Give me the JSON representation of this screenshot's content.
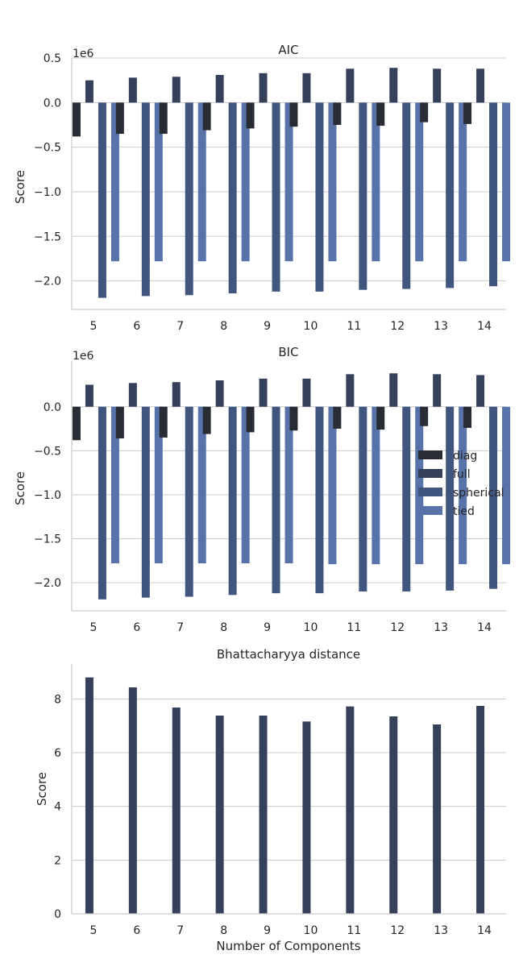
{
  "colors": {
    "diag": "#282c35",
    "full": "#35415a",
    "spherical": "#41567f",
    "tied": "#5873a9",
    "bhatt": "#35415a",
    "grid": "#cccccc",
    "axis": "#cccccc",
    "text": "#262626",
    "background": "#ffffff"
  },
  "legend": {
    "entries": [
      "diag",
      "full",
      "spherical",
      "tied"
    ],
    "placement": "center-right of BIC panel"
  },
  "xlabel": "Number of Components",
  "chart_data": [
    {
      "type": "bar",
      "title": "AIC",
      "xlabel": "",
      "ylabel": "Score",
      "offset_text": "1e6",
      "categories": [
        "5",
        "6",
        "7",
        "8",
        "9",
        "10",
        "11",
        "12",
        "13",
        "14"
      ],
      "ylim": [
        -2.32,
        0.5
      ],
      "yticks": [
        0.5,
        0.0,
        -0.5,
        -1.0,
        -1.5,
        -2.0
      ],
      "ytick_labels": [
        "0.5",
        "0.0",
        "−0.5",
        "−1.0",
        "−1.5",
        "−2.0"
      ],
      "grid": true,
      "series": [
        {
          "name": "diag",
          "values": [
            -0.38,
            -0.35,
            -0.35,
            -0.31,
            -0.29,
            -0.27,
            -0.25,
            -0.26,
            -0.22,
            -0.24
          ]
        },
        {
          "name": "full",
          "values": [
            0.25,
            0.28,
            0.29,
            0.31,
            0.33,
            0.33,
            0.38,
            0.39,
            0.38,
            0.38
          ]
        },
        {
          "name": "spherical",
          "values": [
            -2.19,
            -2.17,
            -2.16,
            -2.14,
            -2.12,
            -2.12,
            -2.1,
            -2.09,
            -2.08,
            -2.06
          ]
        },
        {
          "name": "tied",
          "values": [
            -1.78,
            -1.78,
            -1.78,
            -1.78,
            -1.78,
            -1.78,
            -1.78,
            -1.78,
            -1.78,
            -1.78
          ]
        }
      ]
    },
    {
      "type": "bar",
      "title": "BIC",
      "xlabel": "",
      "ylabel": "Score",
      "offset_text": "1e6",
      "categories": [
        "5",
        "6",
        "7",
        "8",
        "9",
        "10",
        "11",
        "12",
        "13",
        "14"
      ],
      "ylim": [
        -2.32,
        0.52
      ],
      "yticks": [
        0.0,
        -0.5,
        -1.0,
        -1.5,
        -2.0
      ],
      "ytick_labels": [
        "0.0",
        "−0.5",
        "−1.0",
        "−1.5",
        "−2.0"
      ],
      "grid": true,
      "legend": true,
      "series": [
        {
          "name": "diag",
          "values": [
            -0.38,
            -0.36,
            -0.35,
            -0.31,
            -0.29,
            -0.27,
            -0.25,
            -0.26,
            -0.22,
            -0.24
          ]
        },
        {
          "name": "full",
          "values": [
            0.25,
            0.27,
            0.28,
            0.3,
            0.32,
            0.32,
            0.37,
            0.38,
            0.37,
            0.36
          ]
        },
        {
          "name": "spherical",
          "values": [
            -2.19,
            -2.17,
            -2.16,
            -2.14,
            -2.12,
            -2.12,
            -2.1,
            -2.1,
            -2.09,
            -2.07
          ]
        },
        {
          "name": "tied",
          "values": [
            -1.78,
            -1.78,
            -1.78,
            -1.78,
            -1.78,
            -1.79,
            -1.79,
            -1.79,
            -1.79,
            -1.79
          ]
        }
      ]
    },
    {
      "type": "bar",
      "title": "Bhattacharyya distance",
      "xlabel": "Number of Components",
      "ylabel": "Score",
      "offset_text": "",
      "categories": [
        "5",
        "6",
        "7",
        "8",
        "9",
        "10",
        "11",
        "12",
        "13",
        "14"
      ],
      "ylim": [
        0,
        9.3
      ],
      "yticks": [
        0,
        2,
        4,
        6,
        8
      ],
      "ytick_labels": [
        "0",
        "2",
        "4",
        "6",
        "8"
      ],
      "grid": true,
      "bar_slot": "full",
      "series": [
        {
          "name": "",
          "values": [
            8.8,
            8.43,
            7.68,
            7.38,
            7.38,
            7.16,
            7.72,
            7.35,
            7.05,
            7.74
          ]
        }
      ]
    }
  ]
}
